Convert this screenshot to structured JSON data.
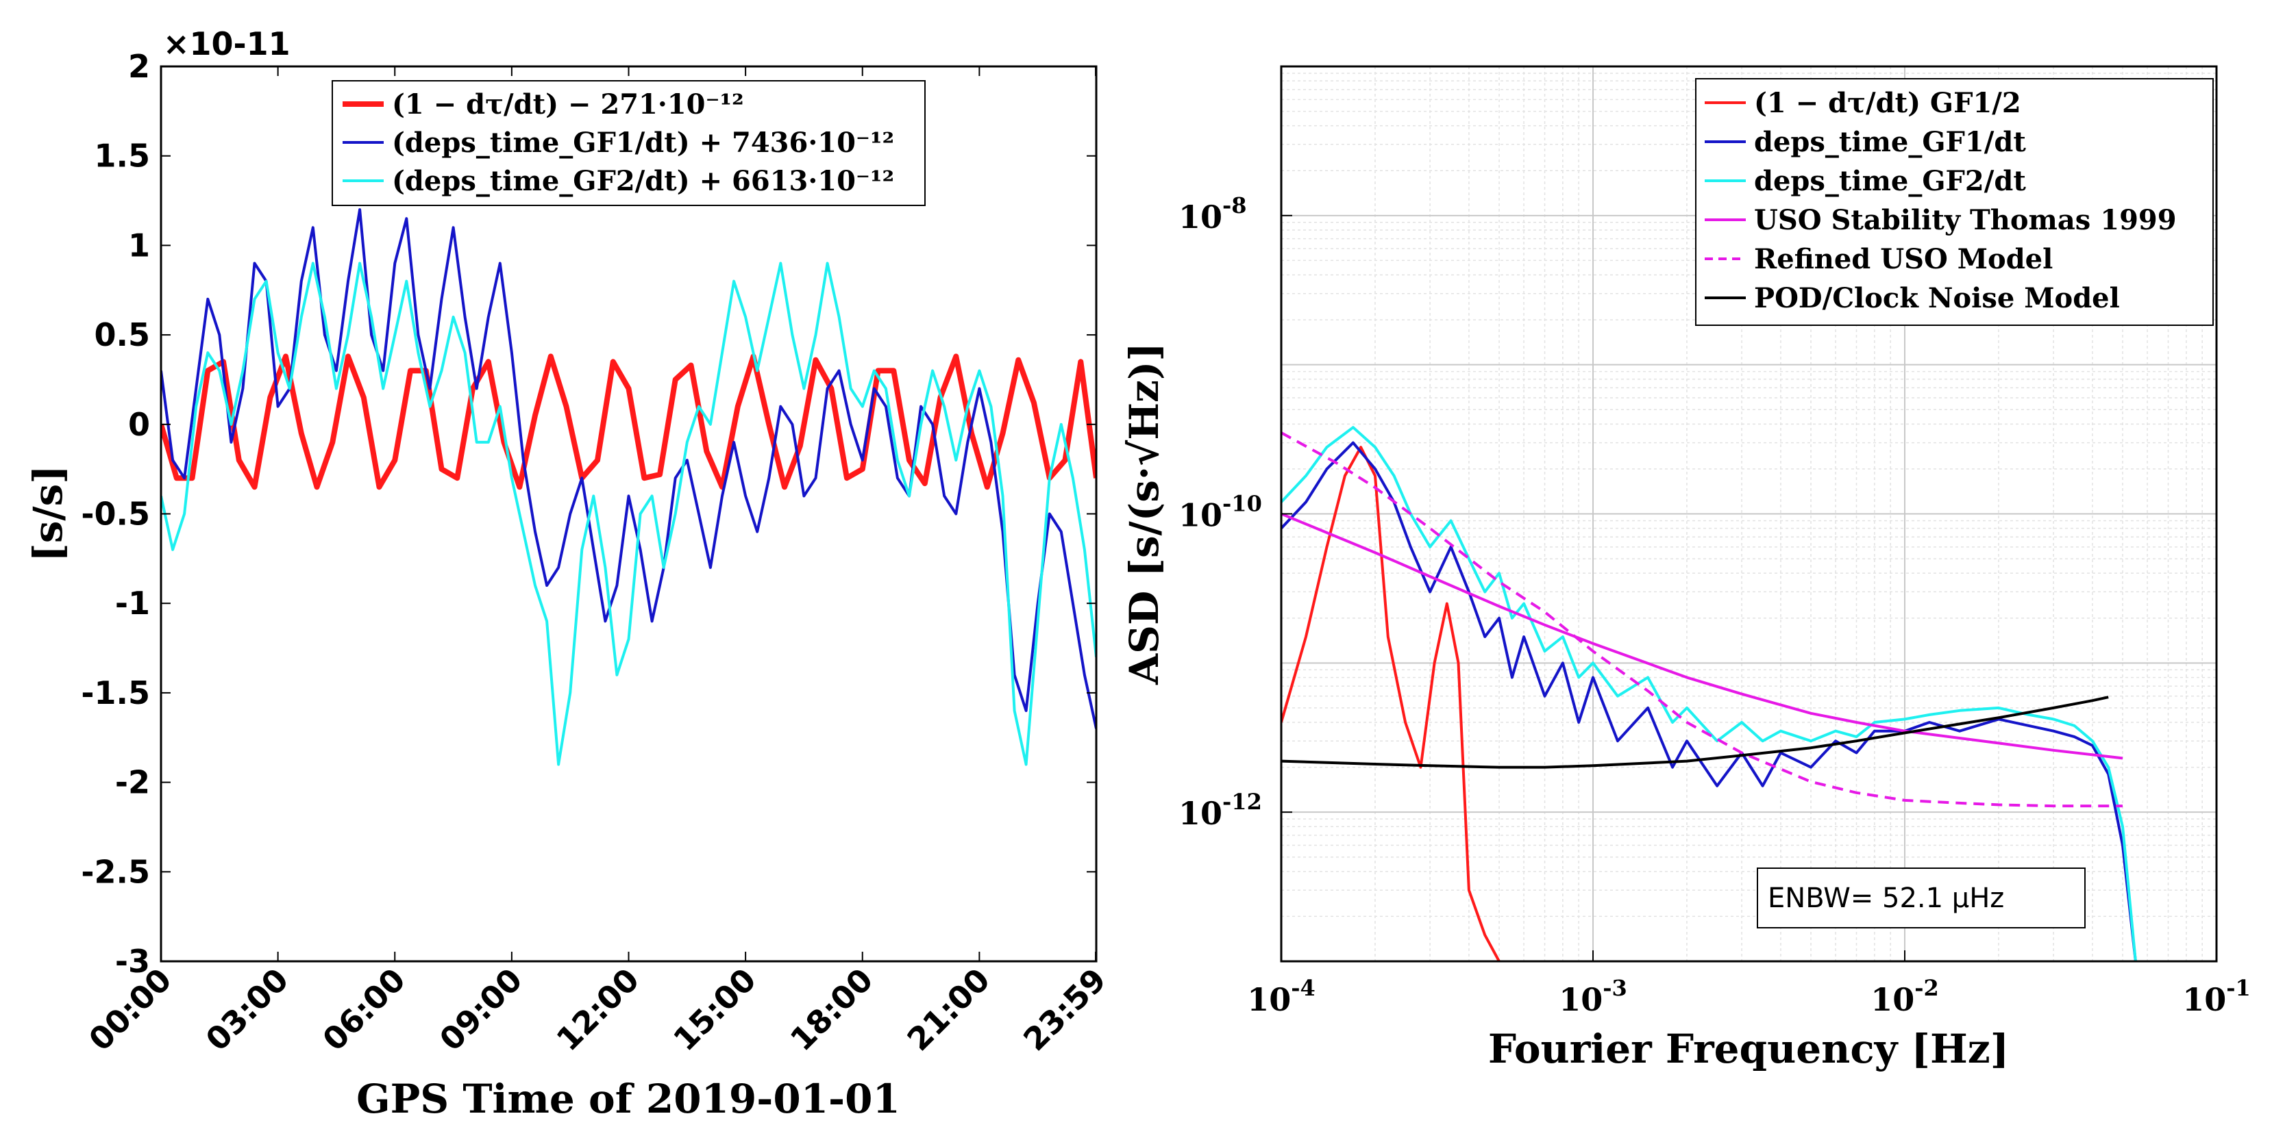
{
  "chart_data": [
    {
      "type": "line",
      "xlabel": "GPS Time of 2019-01-01",
      "ylabel": "[s/s]",
      "y_scale_label": "×10-11",
      "xlim": [
        0,
        24
      ],
      "ylim": [
        -3,
        2
      ],
      "x_tick_values": [
        0,
        3,
        6,
        9,
        12,
        15,
        18,
        21,
        23.983
      ],
      "x_tick_labels": [
        "00:00",
        "03:00",
        "06:00",
        "09:00",
        "12:00",
        "15:00",
        "18:00",
        "21:00",
        "23:59"
      ],
      "y_tick_values": [
        2,
        1.5,
        1,
        0.5,
        0,
        -0.5,
        -1,
        -1.5,
        -2,
        -2.5,
        -3
      ],
      "y_tick_labels": [
        "2",
        "1.5",
        "1",
        "0.5",
        "0",
        "-0.5",
        "-1",
        "-1.5",
        "-2",
        "-2.5",
        "-3"
      ],
      "grid": false,
      "legend_position": "top-center",
      "series": [
        {
          "name": "(1 − dτ/dt) − 271·10⁻¹²",
          "color": "#ff1a1a",
          "x": [
            0,
            0.4,
            0.8,
            1.2,
            1.6,
            2.0,
            2.4,
            2.8,
            3.2,
            3.6,
            4.0,
            4.4,
            4.8,
            5.2,
            5.6,
            6.0,
            6.4,
            6.8,
            7.2,
            7.6,
            8.0,
            8.4,
            8.8,
            9.2,
            9.6,
            10.0,
            10.4,
            10.8,
            11.2,
            11.6,
            12.0,
            12.4,
            12.8,
            13.2,
            13.6,
            14.0,
            14.4,
            14.8,
            15.2,
            15.6,
            16.0,
            16.4,
            16.8,
            17.2,
            17.6,
            18.0,
            18.4,
            18.8,
            19.2,
            19.6,
            20.0,
            20.4,
            20.8,
            21.2,
            21.6,
            22.0,
            22.4,
            22.8,
            23.2,
            23.6,
            24.0
          ],
          "y": [
            0,
            -0.3,
            -0.3,
            0.3,
            0.35,
            -0.2,
            -0.35,
            0.15,
            0.38,
            -0.05,
            -0.35,
            -0.1,
            0.38,
            0.15,
            -0.35,
            -0.2,
            0.3,
            0.3,
            -0.25,
            -0.3,
            0.2,
            0.35,
            -0.1,
            -0.35,
            0.05,
            0.38,
            0.1,
            -0.3,
            -0.2,
            0.35,
            0.2,
            -0.3,
            -0.28,
            0.25,
            0.33,
            -0.15,
            -0.35,
            0.1,
            0.38,
            0.0,
            -0.35,
            -0.12,
            0.36,
            0.2,
            -0.3,
            -0.25,
            0.3,
            0.3,
            -0.2,
            -0.33,
            0.15,
            0.38,
            -0.05,
            -0.35,
            -0.05,
            0.36,
            0.12,
            -0.3,
            -0.2,
            0.35,
            -0.3
          ]
        },
        {
          "name": "(deps_time_GF1/dt) + 7436·10⁻¹²",
          "color": "#1414c8",
          "x": [
            0,
            0.3,
            0.6,
            0.9,
            1.2,
            1.5,
            1.8,
            2.1,
            2.4,
            2.7,
            3.0,
            3.3,
            3.6,
            3.9,
            4.2,
            4.5,
            4.8,
            5.1,
            5.4,
            5.7,
            6.0,
            6.3,
            6.6,
            6.9,
            7.2,
            7.5,
            7.8,
            8.1,
            8.4,
            8.7,
            9.0,
            9.3,
            9.6,
            9.9,
            10.2,
            10.5,
            10.8,
            11.1,
            11.4,
            11.7,
            12.0,
            12.3,
            12.6,
            12.9,
            13.2,
            13.5,
            13.8,
            14.1,
            14.4,
            14.7,
            15.0,
            15.3,
            15.6,
            15.9,
            16.2,
            16.5,
            16.8,
            17.1,
            17.4,
            17.7,
            18.0,
            18.3,
            18.6,
            18.9,
            19.2,
            19.5,
            19.8,
            20.1,
            20.4,
            20.7,
            21.0,
            21.3,
            21.6,
            21.9,
            22.2,
            22.5,
            22.8,
            23.1,
            23.4,
            23.7,
            24.0
          ],
          "y": [
            0.3,
            -0.2,
            -0.3,
            0.2,
            0.7,
            0.5,
            -0.1,
            0.2,
            0.9,
            0.8,
            0.1,
            0.2,
            0.8,
            1.1,
            0.5,
            0.3,
            0.8,
            1.2,
            0.5,
            0.3,
            0.9,
            1.15,
            0.5,
            0.2,
            0.7,
            1.1,
            0.6,
            0.2,
            0.6,
            0.9,
            0.4,
            -0.2,
            -0.6,
            -0.9,
            -0.8,
            -0.5,
            -0.3,
            -0.7,
            -1.1,
            -0.9,
            -0.4,
            -0.7,
            -1.1,
            -0.8,
            -0.3,
            -0.2,
            -0.5,
            -0.8,
            -0.4,
            -0.1,
            -0.4,
            -0.6,
            -0.3,
            0.1,
            0.0,
            -0.4,
            -0.3,
            0.2,
            0.3,
            0.0,
            -0.2,
            0.2,
            0.1,
            -0.3,
            -0.4,
            0.1,
            0.0,
            -0.4,
            -0.5,
            -0.1,
            0.2,
            -0.1,
            -0.6,
            -1.4,
            -1.6,
            -1.0,
            -0.5,
            -0.6,
            -1.0,
            -1.4,
            -1.7
          ]
        },
        {
          "name": "(deps_time_GF2/dt) + 6613·10⁻¹²",
          "color": "#1ef0f0",
          "x": [
            0,
            0.3,
            0.6,
            0.9,
            1.2,
            1.5,
            1.8,
            2.1,
            2.4,
            2.7,
            3.0,
            3.3,
            3.6,
            3.9,
            4.2,
            4.5,
            4.8,
            5.1,
            5.4,
            5.7,
            6.0,
            6.3,
            6.6,
            6.9,
            7.2,
            7.5,
            7.8,
            8.1,
            8.4,
            8.7,
            9.0,
            9.3,
            9.6,
            9.9,
            10.2,
            10.5,
            10.8,
            11.1,
            11.4,
            11.7,
            12.0,
            12.3,
            12.6,
            12.9,
            13.2,
            13.5,
            13.8,
            14.1,
            14.4,
            14.7,
            15.0,
            15.3,
            15.6,
            15.9,
            16.2,
            16.5,
            16.8,
            17.1,
            17.4,
            17.7,
            18.0,
            18.3,
            18.6,
            18.9,
            19.2,
            19.5,
            19.8,
            20.1,
            20.4,
            20.7,
            21.0,
            21.3,
            21.6,
            21.9,
            22.2,
            22.5,
            22.8,
            23.1,
            23.4,
            23.7,
            24.0
          ],
          "y": [
            -0.4,
            -0.7,
            -0.5,
            0.1,
            0.4,
            0.3,
            0.0,
            0.3,
            0.7,
            0.8,
            0.4,
            0.2,
            0.6,
            0.9,
            0.6,
            0.2,
            0.5,
            0.9,
            0.6,
            0.2,
            0.5,
            0.8,
            0.4,
            0.1,
            0.3,
            0.6,
            0.4,
            -0.1,
            -0.1,
            0.1,
            -0.3,
            -0.6,
            -0.9,
            -1.1,
            -1.9,
            -1.5,
            -0.7,
            -0.4,
            -0.8,
            -1.4,
            -1.2,
            -0.5,
            -0.4,
            -0.8,
            -0.5,
            -0.1,
            0.1,
            0.0,
            0.4,
            0.8,
            0.6,
            0.3,
            0.6,
            0.9,
            0.5,
            0.2,
            0.5,
            0.9,
            0.6,
            0.2,
            0.1,
            0.3,
            0.2,
            -0.2,
            -0.4,
            0.0,
            0.3,
            0.1,
            -0.2,
            0.1,
            0.3,
            0.1,
            -0.4,
            -1.6,
            -1.9,
            -1.1,
            -0.3,
            0.0,
            -0.3,
            -0.7,
            -1.3
          ]
        }
      ]
    },
    {
      "type": "line",
      "xscale": "log",
      "yscale": "log",
      "xlabel": "Fourier Frequency [Hz]",
      "ylabel": "ASD [s/(s·√Hz)]",
      "xlim": [
        0.0001,
        0.1
      ],
      "ylim": [
        1e-13,
        1e-07
      ],
      "x_tick_values": [
        0.0001,
        0.001,
        0.01,
        0.1
      ],
      "x_tick_labels": [
        {
          "base": "10",
          "exp": "-4"
        },
        {
          "base": "10",
          "exp": "-3"
        },
        {
          "base": "10",
          "exp": "-2"
        },
        {
          "base": "10",
          "exp": "-1"
        }
      ],
      "y_tick_values": [
        1e-12,
        1e-10,
        1e-08
      ],
      "y_tick_labels": [
        {
          "base": "10",
          "exp": "-12"
        },
        {
          "base": "10",
          "exp": "-10"
        },
        {
          "base": "10",
          "exp": "-8"
        }
      ],
      "grid": true,
      "legend_position": "top-right",
      "annotation": "ENBW= 52.1 μHz",
      "series": [
        {
          "name": "(1 − dτ/dt) GF1/2",
          "color": "#ff1a1a",
          "dash": false,
          "x": [
            0.0001,
            0.00012,
            0.00014,
            0.00016,
            0.00018,
            0.0002,
            0.00022,
            0.00025,
            0.00028,
            0.00031,
            0.00034,
            0.00037,
            0.0004,
            0.00045,
            0.0005
          ],
          "y": [
            4e-12,
            1.5e-11,
            6e-11,
            1.8e-10,
            2.8e-10,
            1.8e-10,
            1.5e-11,
            4e-12,
            2e-12,
            1e-11,
            2.5e-11,
            1e-11,
            3e-13,
            1.5e-13,
            1e-13
          ]
        },
        {
          "name": "deps_time_GF1/dt",
          "color": "#1414c8",
          "dash": false,
          "x": [
            0.0001,
            0.00012,
            0.00014,
            0.00017,
            0.0002,
            0.00023,
            0.00026,
            0.0003,
            0.00035,
            0.0004,
            0.00045,
            0.0005,
            0.00055,
            0.0006,
            0.0007,
            0.0008,
            0.0009,
            0.001,
            0.0012,
            0.0015,
            0.0018,
            0.002,
            0.0025,
            0.003,
            0.0035,
            0.004,
            0.005,
            0.006,
            0.007,
            0.008,
            0.01,
            0.012,
            0.015,
            0.02,
            0.025,
            0.03,
            0.035,
            0.04,
            0.045,
            0.05,
            0.055
          ],
          "y": [
            8e-11,
            1.2e-10,
            2e-10,
            3e-10,
            2e-10,
            1.2e-10,
            6e-11,
            3e-11,
            6e-11,
            3e-11,
            1.5e-11,
            2e-11,
            8e-12,
            1.5e-11,
            6e-12,
            1e-11,
            4e-12,
            8e-12,
            3e-12,
            5e-12,
            2e-12,
            3e-12,
            1.5e-12,
            2.5e-12,
            1.5e-12,
            2.5e-12,
            2e-12,
            3e-12,
            2.5e-12,
            3.5e-12,
            3.5e-12,
            4e-12,
            3.5e-12,
            4.2e-12,
            3.8e-12,
            3.5e-12,
            3.2e-12,
            2.8e-12,
            1.8e-12,
            6e-13,
            1e-13
          ]
        },
        {
          "name": "deps_time_GF2/dt",
          "color": "#1ef0f0",
          "dash": false,
          "x": [
            0.0001,
            0.00012,
            0.00014,
            0.00017,
            0.0002,
            0.00023,
            0.00026,
            0.0003,
            0.00035,
            0.0004,
            0.00045,
            0.0005,
            0.00055,
            0.0006,
            0.0007,
            0.0008,
            0.0009,
            0.001,
            0.0012,
            0.0015,
            0.0018,
            0.002,
            0.0025,
            0.003,
            0.0035,
            0.004,
            0.005,
            0.006,
            0.007,
            0.008,
            0.01,
            0.012,
            0.015,
            0.02,
            0.025,
            0.03,
            0.035,
            0.04,
            0.045,
            0.05,
            0.055
          ],
          "y": [
            1.2e-10,
            1.8e-10,
            2.8e-10,
            3.8e-10,
            2.8e-10,
            1.8e-10,
            1e-10,
            6e-11,
            9e-11,
            5e-11,
            3e-11,
            4e-11,
            2e-11,
            2.5e-11,
            1.2e-11,
            1.5e-11,
            8e-12,
            1e-11,
            6e-12,
            8e-12,
            4e-12,
            5e-12,
            3e-12,
            4e-12,
            3e-12,
            3.5e-12,
            3e-12,
            3.5e-12,
            3.2e-12,
            4e-12,
            4.2e-12,
            4.5e-12,
            4.8e-12,
            5e-12,
            4.5e-12,
            4.2e-12,
            3.8e-12,
            3e-12,
            2e-12,
            8e-13,
            1e-13
          ]
        },
        {
          "name": "USO Stability Thomas 1999",
          "color": "#e619e6",
          "dash": false,
          "x": [
            0.0001,
            0.0002,
            0.0003,
            0.0005,
            0.0007,
            0.001,
            0.002,
            0.003,
            0.005,
            0.007,
            0.01,
            0.02,
            0.03,
            0.05
          ],
          "y": [
            1e-10,
            5.5e-11,
            3.8e-11,
            2.4e-11,
            1.8e-11,
            1.35e-11,
            8e-12,
            6.2e-12,
            4.6e-12,
            4e-12,
            3.5e-12,
            2.9e-12,
            2.6e-12,
            2.3e-12
          ]
        },
        {
          "name": "Refined USO Model",
          "color": "#e619e6",
          "dash": true,
          "x": [
            0.0001,
            0.00015,
            0.0002,
            0.0003,
            0.0005,
            0.0007,
            0.001,
            0.0015,
            0.002,
            0.003,
            0.005,
            0.007,
            0.01,
            0.015,
            0.02,
            0.03,
            0.05
          ],
          "y": [
            3.5e-10,
            2.2e-10,
            1.5e-10,
            8e-11,
            3.5e-11,
            2.2e-11,
            1.2e-11,
            6.5e-12,
            4e-12,
            2.5e-12,
            1.6e-12,
            1.35e-12,
            1.2e-12,
            1.15e-12,
            1.12e-12,
            1.1e-12,
            1.1e-12
          ]
        },
        {
          "name": "POD/Clock Noise Model",
          "color": "#000000",
          "dash": false,
          "x": [
            0.0001,
            0.0002,
            0.0003,
            0.0005,
            0.0007,
            0.001,
            0.002,
            0.003,
            0.005,
            0.007,
            0.01,
            0.015,
            0.02,
            0.03,
            0.04,
            0.045
          ],
          "y": [
            2.2e-12,
            2.1e-12,
            2.05e-12,
            2e-12,
            2e-12,
            2.05e-12,
            2.2e-12,
            2.4e-12,
            2.7e-12,
            3e-12,
            3.4e-12,
            3.9e-12,
            4.3e-12,
            5e-12,
            5.6e-12,
            5.9e-12
          ]
        }
      ]
    }
  ]
}
